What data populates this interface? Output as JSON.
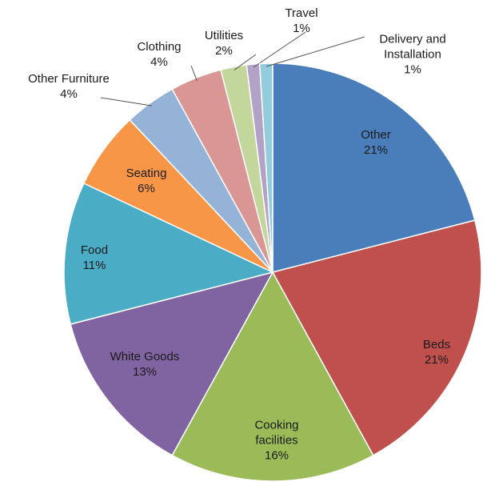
{
  "chart_data": {
    "type": "pie",
    "categories": [
      "Other",
      "Beds",
      "Cooking facilities",
      "White Goods",
      "Food",
      "Seating",
      "Other Furniture",
      "Clothing",
      "Utilities",
      "Travel",
      "Delivery and Installation"
    ],
    "values": [
      21,
      21,
      16,
      13,
      11,
      6,
      4,
      4,
      2,
      1,
      1
    ],
    "value_labels": [
      "21%",
      "21%",
      "16%",
      "13%",
      "11%",
      "6%",
      "4%",
      "4%",
      "2%",
      "1%",
      "1%"
    ],
    "colors": [
      "#4a7ebb",
      "#c0504d",
      "#9bbb59",
      "#8064a2",
      "#4bacc6",
      "#f79646",
      "#95b3d7",
      "#d99694",
      "#c3d69b",
      "#b3a2c7",
      "#93cddd"
    ]
  }
}
